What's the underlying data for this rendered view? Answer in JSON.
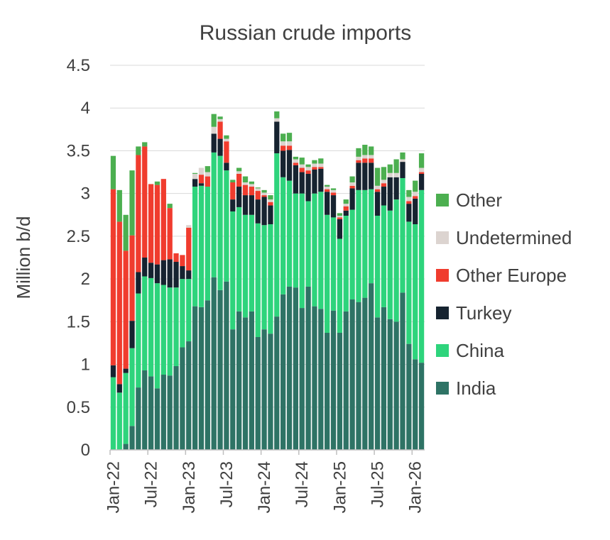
{
  "chart_data": {
    "type": "bar",
    "stacked": true,
    "title": "Russian crude imports",
    "xlabel": "",
    "ylabel": "Million b/d",
    "ylim": [
      0,
      4.5
    ],
    "yticks": [
      "0",
      "0.5",
      "1",
      "1.5",
      "2",
      "2.5",
      "3",
      "3.5",
      "4",
      "4.5"
    ],
    "grid": true,
    "legend_position": "right",
    "x_tick_labels": [
      {
        "label": "Jan-22",
        "index": 0
      },
      {
        "label": "Jul-22",
        "index": 6
      },
      {
        "label": "Jan-23",
        "index": 12
      },
      {
        "label": "Jul-23",
        "index": 18
      },
      {
        "label": "Jan-24",
        "index": 24
      },
      {
        "label": "Jul-24",
        "index": 30
      },
      {
        "label": "Jan-25",
        "index": 36
      },
      {
        "label": "Jul-25",
        "index": 42
      },
      {
        "label": "Jan-26",
        "index": 48
      }
    ],
    "categories": [
      "Jan-22",
      "Feb-22",
      "Mar-22",
      "Apr-22",
      "May-22",
      "Jun-22",
      "Jul-22",
      "Aug-22",
      "Sep-22",
      "Oct-22",
      "Nov-22",
      "Dec-22",
      "Jan-23",
      "Feb-23",
      "Mar-23",
      "Apr-23",
      "May-23",
      "Jun-23",
      "Jul-23",
      "Aug-23",
      "Sep-23",
      "Oct-23",
      "Nov-23",
      "Dec-23",
      "Jan-24",
      "Feb-24",
      "Mar-24",
      "Apr-24",
      "May-24",
      "Jun-24",
      "Jul-24",
      "Aug-24",
      "Sep-24",
      "Oct-24",
      "Nov-24",
      "Dec-24",
      "Jan-25",
      "Feb-25",
      "Mar-25",
      "Apr-25",
      "May-25",
      "Jun-25",
      "Jul-25",
      "Aug-25",
      "Sep-25",
      "Oct-25",
      "Nov-25",
      "Dec-25",
      "Jan-26",
      "Feb-26"
    ],
    "series": [
      {
        "name": "India",
        "color": "#2e7365",
        "values": [
          0.0,
          0.0,
          0.07,
          0.28,
          0.73,
          0.93,
          0.86,
          0.72,
          0.88,
          0.87,
          0.98,
          1.2,
          1.27,
          1.68,
          1.67,
          1.75,
          2.02,
          1.87,
          1.97,
          1.41,
          1.62,
          1.55,
          1.62,
          1.32,
          1.41,
          1.36,
          1.56,
          1.82,
          1.91,
          1.9,
          1.66,
          1.91,
          1.68,
          1.65,
          1.37,
          1.63,
          1.37,
          1.62,
          1.76,
          1.73,
          1.78,
          1.95,
          1.55,
          1.67,
          1.53,
          1.5,
          1.84,
          1.24,
          1.06,
          1.02
        ]
      },
      {
        "name": "China",
        "color": "#2ed47c",
        "values": [
          0.85,
          0.67,
          0.83,
          0.91,
          1.1,
          1.1,
          1.15,
          1.23,
          1.05,
          1.03,
          0.92,
          0.8,
          0.73,
          1.4,
          1.42,
          1.33,
          1.46,
          1.57,
          1.3,
          1.38,
          1.22,
          1.2,
          1.13,
          1.33,
          1.22,
          1.28,
          1.91,
          1.37,
          1.24,
          1.1,
          1.34,
          1.0,
          1.32,
          1.37,
          1.38,
          1.09,
          1.1,
          1.12,
          1.05,
          1.31,
          1.26,
          1.1,
          1.19,
          1.19,
          1.27,
          1.43,
          1.34,
          1.43,
          1.58,
          2.02
        ]
      },
      {
        "name": "Turkey",
        "color": "#162330",
        "values": [
          0.14,
          0.1,
          0.05,
          0.32,
          0.25,
          0.22,
          0.18,
          0.22,
          0.29,
          0.33,
          0.3,
          0.15,
          0.1,
          0.09,
          0.03,
          0.0,
          0.22,
          0.2,
          0.09,
          0.14,
          0.24,
          0.23,
          0.23,
          0.28,
          0.33,
          0.22,
          0.37,
          0.31,
          0.36,
          0.33,
          0.25,
          0.32,
          0.28,
          0.27,
          0.27,
          0.26,
          0.23,
          0.06,
          0.25,
          0.32,
          0.32,
          0.31,
          0.28,
          0.22,
          0.39,
          0.26,
          0.19,
          0.21,
          0.3,
          0.19
        ]
      },
      {
        "name": "Other Europe",
        "color": "#f03c2e",
        "values": [
          2.06,
          1.9,
          1.38,
          1.0,
          1.37,
          1.3,
          0.92,
          0.93,
          0.95,
          0.6,
          0.1,
          0.13,
          0.5,
          0.0,
          0.1,
          0.12,
          0.0,
          0.2,
          0.25,
          0.2,
          0.15,
          0.12,
          0.1,
          0.1,
          0.02,
          0.04,
          0.0,
          0.06,
          0.05,
          0.03,
          0.05,
          0.04,
          0.03,
          0.02,
          0.03,
          0.03,
          0.02,
          0.05,
          0.03,
          0.03,
          0.05,
          0.05,
          0.03,
          0.04,
          0.0,
          0.0,
          0.0,
          0.03,
          0.03,
          0.02
        ]
      },
      {
        "name": "Undetermined",
        "color": "#dcd4d0",
        "values": [
          0.0,
          0.0,
          0.0,
          0.0,
          0.0,
          0.0,
          0.0,
          0.0,
          0.0,
          0.0,
          0.0,
          0.0,
          0.03,
          0.06,
          0.08,
          0.05,
          0.08,
          0.03,
          0.03,
          0.0,
          0.03,
          0.03,
          0.03,
          0.03,
          0.03,
          0.03,
          0.04,
          0.05,
          0.05,
          0.04,
          0.04,
          0.04,
          0.04,
          0.04,
          0.03,
          0.03,
          0.02,
          0.03,
          0.04,
          0.04,
          0.04,
          0.04,
          0.04,
          0.04,
          0.05,
          0.05,
          0.03,
          0.05,
          0.05,
          0.05
        ]
      },
      {
        "name": "Other",
        "color": "#4caf50",
        "values": [
          0.39,
          0.37,
          0.42,
          0.76,
          0.1,
          0.05,
          0.0,
          0.04,
          0.0,
          0.05,
          0.0,
          0.0,
          0.0,
          0.01,
          0.0,
          0.07,
          0.15,
          0.03,
          0.04,
          0.03,
          0.04,
          0.07,
          0.03,
          0.01,
          0.03,
          0.05,
          0.08,
          0.09,
          0.1,
          0.03,
          0.08,
          0.03,
          0.04,
          0.06,
          0.02,
          0.02,
          0.03,
          0.05,
          0.07,
          0.1,
          0.12,
          0.1,
          0.21,
          0.15,
          0.1,
          0.16,
          0.08,
          0.08,
          0.13,
          0.17
        ]
      }
    ],
    "legend_order": [
      "Other",
      "Undetermined",
      "Other Europe",
      "Turkey",
      "China",
      "India"
    ]
  }
}
